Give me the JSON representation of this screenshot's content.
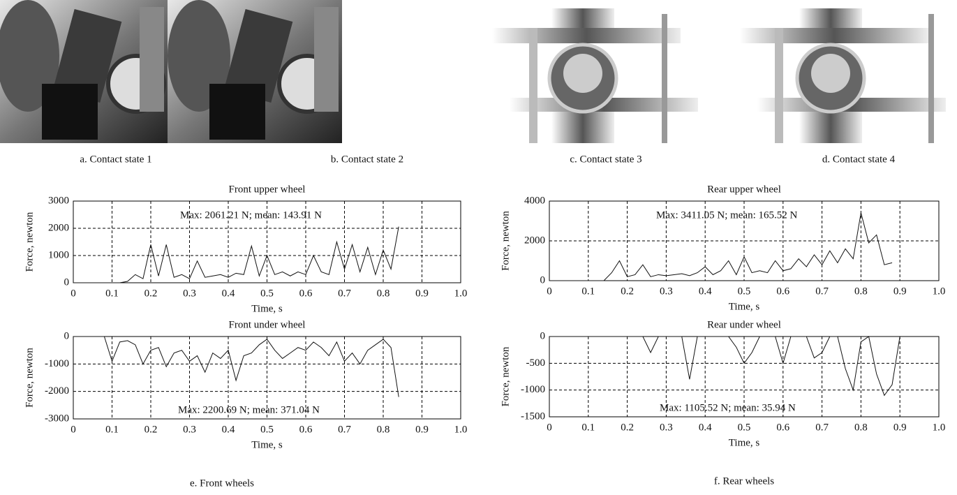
{
  "images": [
    {
      "caption": "a. Contact state 1"
    },
    {
      "caption": "b. Contact state 2"
    },
    {
      "caption": "c. Contact state 3"
    },
    {
      "caption": "d. Contact state 4"
    }
  ],
  "captions": {
    "front": "e. Front wheels",
    "rear": "f. Rear wheels"
  },
  "chart_data": [
    {
      "type": "line",
      "title": "Front upper wheel",
      "x_label": "Time, s",
      "y_label": "Force, newton",
      "annotation": "Max: 2061.21 N; mean: 143.91 N",
      "grid": true,
      "xlim": [
        0,
        1
      ],
      "ylim": [
        0,
        3000
      ],
      "xticks": [
        0,
        0.1,
        0.2,
        0.3,
        0.4,
        0.5,
        0.6,
        0.7,
        0.8,
        0.9,
        {
          "value": 1,
          "label": "1.0"
        }
      ],
      "yticks": [
        0,
        1000,
        2000,
        3000
      ],
      "x": [
        0,
        0.02,
        0.04,
        0.06,
        0.08,
        0.1,
        0.12,
        0.14,
        0.16,
        0.18,
        0.2,
        0.22,
        0.24,
        0.26,
        0.28,
        0.3,
        0.32,
        0.34,
        0.36,
        0.38,
        0.4,
        0.42,
        0.44,
        0.46,
        0.48,
        0.5,
        0.52,
        0.54,
        0.56,
        0.58,
        0.6,
        0.62,
        0.64,
        0.66,
        0.68,
        0.7,
        0.72,
        0.74,
        0.76,
        0.78,
        0.8,
        0.82,
        0.84
      ],
      "series": [
        {
          "color": "#111111",
          "values": [
            0,
            0,
            0,
            0,
            0,
            0,
            0,
            50,
            300,
            150,
            1400,
            250,
            1400,
            200,
            300,
            150,
            800,
            200,
            250,
            300,
            200,
            350,
            300,
            1350,
            250,
            1000,
            300,
            400,
            250,
            400,
            300,
            1000,
            400,
            300,
            1500,
            500,
            1400,
            400,
            1300,
            300,
            1200,
            500,
            2061
          ]
        }
      ]
    },
    {
      "type": "line",
      "title": "Rear upper wheel",
      "x_label": "Time, s",
      "y_label": "Force, newton",
      "annotation": "Max: 3411.05 N; mean: 165.52 N",
      "grid": true,
      "xlim": [
        0,
        1
      ],
      "ylim": [
        0,
        4000
      ],
      "xticks": [
        0,
        0.1,
        0.2,
        0.3,
        0.4,
        0.5,
        0.6,
        0.7,
        0.8,
        0.9,
        {
          "value": 1,
          "label": "1.0"
        }
      ],
      "yticks": [
        0,
        2000,
        4000
      ],
      "x": [
        0,
        0.02,
        0.04,
        0.06,
        0.08,
        0.1,
        0.12,
        0.14,
        0.16,
        0.18,
        0.2,
        0.22,
        0.24,
        0.26,
        0.28,
        0.3,
        0.32,
        0.34,
        0.36,
        0.38,
        0.4,
        0.42,
        0.44,
        0.46,
        0.48,
        0.5,
        0.52,
        0.54,
        0.56,
        0.58,
        0.6,
        0.62,
        0.64,
        0.66,
        0.68,
        0.7,
        0.72,
        0.74,
        0.76,
        0.78,
        0.8,
        0.82,
        0.84,
        0.86,
        0.88
      ],
      "series": [
        {
          "color": "#111111",
          "values": [
            0,
            0,
            0,
            0,
            0,
            0,
            0,
            0,
            400,
            1000,
            200,
            300,
            800,
            200,
            300,
            250,
            300,
            350,
            250,
            400,
            700,
            300,
            500,
            1000,
            300,
            1200,
            400,
            500,
            400,
            1000,
            500,
            600,
            1100,
            700,
            1300,
            800,
            1500,
            900,
            1600,
            1100,
            3411,
            1900,
            2300,
            800,
            900
          ]
        }
      ]
    },
    {
      "type": "line",
      "title": "Front under wheel",
      "x_label": "Time, s",
      "y_label": "Force, newton",
      "annotation": "Max: 2200.69 N; mean: 371.04 N",
      "grid": true,
      "xlim": [
        0,
        1
      ],
      "ylim": [
        -3000,
        0
      ],
      "xticks": [
        0,
        0.1,
        0.2,
        0.3,
        0.4,
        0.5,
        0.6,
        0.7,
        0.8,
        0.9,
        {
          "value": 1,
          "label": "1.0"
        }
      ],
      "yticks": [
        -3000,
        -2000,
        -1000,
        0
      ],
      "x": [
        0,
        0.02,
        0.04,
        0.06,
        0.08,
        0.1,
        0.12,
        0.14,
        0.16,
        0.18,
        0.2,
        0.22,
        0.24,
        0.26,
        0.28,
        0.3,
        0.32,
        0.34,
        0.36,
        0.38,
        0.4,
        0.42,
        0.44,
        0.46,
        0.48,
        0.5,
        0.52,
        0.54,
        0.56,
        0.58,
        0.6,
        0.62,
        0.64,
        0.66,
        0.68,
        0.7,
        0.72,
        0.74,
        0.76,
        0.78,
        0.8,
        0.82,
        0.84
      ],
      "series": [
        {
          "color": "#111111",
          "values": [
            0,
            0,
            0,
            0,
            0,
            -900,
            -200,
            -150,
            -300,
            -1000,
            -500,
            -400,
            -1100,
            -600,
            -500,
            -900,
            -700,
            -1300,
            -600,
            -800,
            -500,
            -1600,
            -700,
            -600,
            -300,
            -100,
            -500,
            -800,
            -600,
            -400,
            -500,
            -200,
            -400,
            -700,
            -200,
            -900,
            -600,
            -1000,
            -500,
            -300,
            -100,
            -400,
            -2200
          ]
        }
      ]
    },
    {
      "type": "line",
      "title": "Rear under wheel",
      "x_label": "Time, s",
      "y_label": "Force, newton",
      "annotation": "Max: 1105.52 N; mean: 35.94 N",
      "grid": true,
      "xlim": [
        0,
        1
      ],
      "ylim": [
        -1500,
        0
      ],
      "xticks": [
        0,
        0.1,
        0.2,
        0.3,
        0.4,
        0.5,
        0.6,
        0.7,
        0.8,
        0.9,
        {
          "value": 1,
          "label": "1.0"
        }
      ],
      "yticks": [
        -1500,
        -1000,
        -500,
        0
      ],
      "x": [
        0,
        0.02,
        0.04,
        0.06,
        0.08,
        0.1,
        0.12,
        0.14,
        0.16,
        0.18,
        0.2,
        0.22,
        0.24,
        0.26,
        0.28,
        0.3,
        0.32,
        0.34,
        0.36,
        0.38,
        0.4,
        0.42,
        0.44,
        0.46,
        0.48,
        0.5,
        0.52,
        0.54,
        0.56,
        0.58,
        0.6,
        0.62,
        0.64,
        0.66,
        0.68,
        0.7,
        0.72,
        0.74,
        0.76,
        0.78,
        0.8,
        0.82,
        0.84,
        0.86,
        0.88,
        0.9
      ],
      "series": [
        {
          "color": "#111111",
          "values": [
            0,
            0,
            0,
            0,
            0,
            0,
            0,
            0,
            0,
            0,
            0,
            0,
            0,
            -300,
            0,
            0,
            0,
            0,
            -800,
            0,
            0,
            0,
            0,
            0,
            -200,
            -500,
            -300,
            0,
            0,
            0,
            -500,
            0,
            0,
            0,
            -400,
            -300,
            0,
            0,
            -600,
            -1000,
            -100,
            0,
            -700,
            -1100,
            -900,
            0
          ]
        }
      ]
    }
  ]
}
